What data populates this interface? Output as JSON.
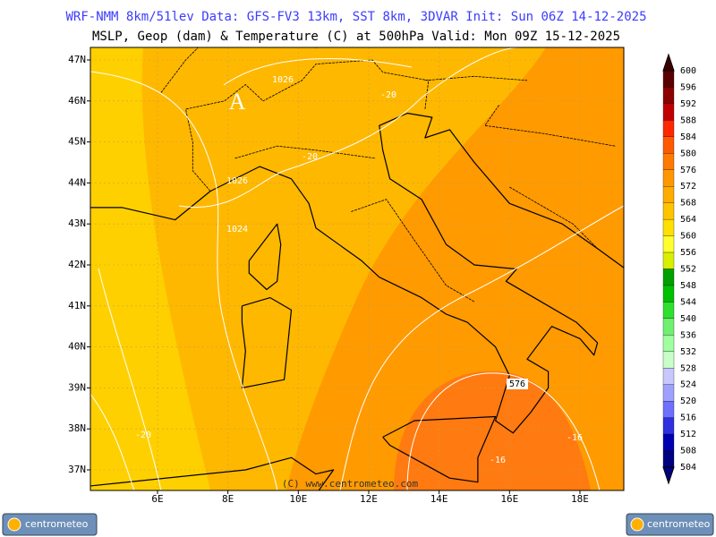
{
  "header": {
    "line1": "WRF-NMM 8km/51lev  Data: GFS-FV3 13km, SST 8km, 3DVAR  Init: Sun 06Z 14-12-2025",
    "line2": "MSLP, Geop (dam) & Temperature (C) at 500hPa  Valid: Mon 09Z 15-12-2025"
  },
  "map": {
    "lat_labels": [
      "47N",
      "46N",
      "45N",
      "44N",
      "43N",
      "42N",
      "41N",
      "40N",
      "39N",
      "38N",
      "37N"
    ],
    "lon_labels": [
      "6E",
      "8E",
      "10E",
      "12E",
      "14E",
      "16E",
      "18E"
    ],
    "high_marker": "A",
    "contour_labels": [
      "1026",
      "-20",
      "-20",
      "1026",
      "1024",
      "576",
      "-20",
      "-16",
      "-16"
    ],
    "copyright": "(C) www.centrometeo.com"
  },
  "colorbar": {
    "labels": [
      "600",
      "596",
      "592",
      "588",
      "584",
      "580",
      "576",
      "572",
      "568",
      "564",
      "560",
      "556",
      "552",
      "548",
      "544",
      "540",
      "536",
      "532",
      "528",
      "524",
      "520",
      "516",
      "512",
      "508",
      "504"
    ]
  },
  "logos": {
    "left": "centrometeo",
    "right": "centrometeo"
  }
}
